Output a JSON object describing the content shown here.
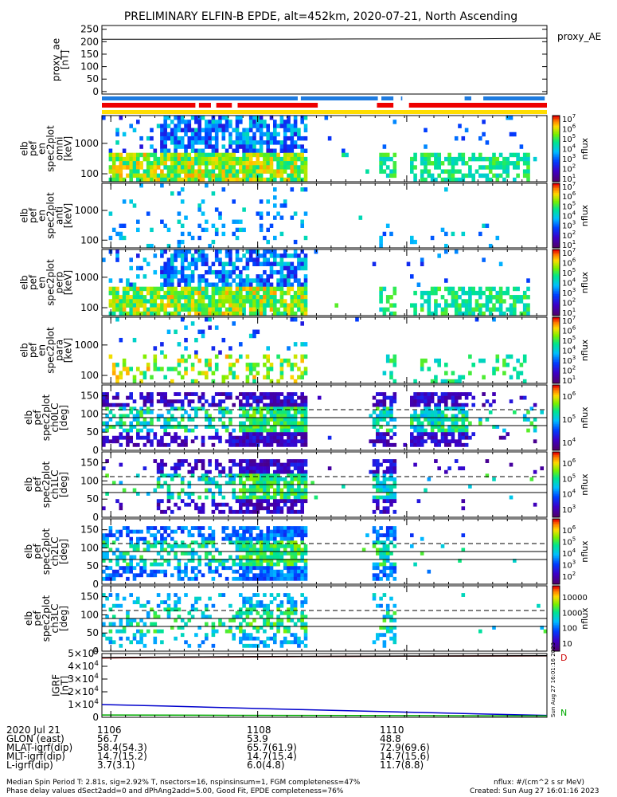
{
  "chart_data": {
    "type": "heatmap",
    "title": "PRELIMINARY ELFIN-B EPDE, alt=452km, 2020-07-21, North Ascending",
    "time_ticks": [
      "1106",
      "1108",
      "1110"
    ],
    "proxy_ae": {
      "ylabel": "proxy_ae\n[nT]",
      "legend": "proxy_AE",
      "yticks": [
        "250",
        "200",
        "150",
        "100",
        "50",
        "0"
      ],
      "ylim": [
        -10,
        265
      ],
      "values": [
        210,
        210,
        210,
        210,
        211,
        211,
        212,
        214
      ]
    },
    "spectra_panels": [
      {
        "ylabel": "elb\npef\nen\nspec2plot\nomni\n[keV]",
        "yticks": [
          "1000",
          "100"
        ],
        "colorbar_ticks": [
          "10^7",
          "10^6",
          "10^5",
          "10^4",
          "10^3",
          "10^2",
          "10^1"
        ],
        "colorbar_label": "nflux"
      },
      {
        "ylabel": "elb\npef\nen\nspec2plot\nanti\n[keV]",
        "yticks": [
          "1000",
          "100"
        ],
        "colorbar_ticks": [
          "10^7",
          "10^6",
          "10^5",
          "10^4",
          "10^3",
          "10^2",
          "10^1"
        ],
        "colorbar_label": "nflux"
      },
      {
        "ylabel": "elb\npef\nen\nspec2plot\nperp\n[keV]",
        "yticks": [
          "1000",
          "100"
        ],
        "colorbar_ticks": [
          "10^7",
          "10^6",
          "10^5",
          "10^4",
          "10^3",
          "10^2",
          "10^1"
        ],
        "colorbar_label": "nflux"
      },
      {
        "ylabel": "elb\npef\nen\nspec2plot\npara\n[keV]",
        "yticks": [
          "1000",
          "100"
        ],
        "colorbar_ticks": [
          "10^7",
          "10^6",
          "10^5",
          "10^4",
          "10^3",
          "10^2",
          "10^1"
        ],
        "colorbar_label": "nflux"
      }
    ],
    "pa_panels": [
      {
        "ylabel": "elb\npef\nspec2plot\nch0LC\n[deg]",
        "yticks": [
          "150",
          "100",
          "50",
          "0"
        ],
        "colorbar_ticks": [
          "10^6",
          "10^5",
          "10^4"
        ],
        "colorbar_label": "nflux"
      },
      {
        "ylabel": "elb\npef\nspec2plot\nch1LC\n[deg]",
        "yticks": [
          "150",
          "100",
          "50",
          "0"
        ],
        "colorbar_ticks": [
          "10^6",
          "10^5",
          "10^4",
          "10^3"
        ],
        "colorbar_label": "nflux"
      },
      {
        "ylabel": "elb\npef\nspec2plot\nch2LC\n[deg]",
        "yticks": [
          "150",
          "100",
          "50",
          "0"
        ],
        "colorbar_ticks": [
          "10^6",
          "10^5",
          "10^4",
          "10^3",
          "10^2"
        ],
        "colorbar_label": "nflux"
      },
      {
        "ylabel": "elb\npef\nspec2plot\nch3LC\n[deg]",
        "yticks": [
          "150",
          "100",
          "50",
          "0"
        ],
        "colorbar_ticks": [
          "10000",
          "1000",
          "100",
          "10"
        ],
        "colorbar_label": "nflux"
      }
    ],
    "igrf": {
      "ylabel": "IGRF\n[nT]",
      "yticks": [
        "5×10^4",
        "4×10^4",
        "3×10^4",
        "2×10^4",
        "1×10^4",
        "0"
      ],
      "ylim": [
        0,
        50000
      ],
      "series": [
        {
          "name": "D",
          "color": "#cc0000",
          "values": [
            46500,
            47000,
            47300,
            47600,
            47800,
            48000,
            48100,
            48200
          ]
        },
        {
          "name": "",
          "color": "#000000",
          "values": [
            46800,
            47200,
            47500,
            47700,
            47900,
            48050,
            48150,
            48250
          ]
        },
        {
          "name": "",
          "color": "#0000cc",
          "values": [
            10000,
            8800,
            7500,
            6200,
            5000,
            3800,
            2600,
            1500
          ]
        },
        {
          "name": "N",
          "color": "#00aa00",
          "values": [
            1800,
            1700,
            1600,
            1500,
            1400,
            1300,
            1200,
            1100
          ]
        }
      ],
      "side_text": "Sun Aug 27 16:01:16 2023"
    }
  },
  "footer": {
    "rows": [
      {
        "label": "2020 Jul 21",
        "v1": "1106",
        "v2": "1108",
        "v3": "1110"
      },
      {
        "label": "GLON (east)",
        "v1": "56.7",
        "v2": "53.9",
        "v3": "48.8"
      },
      {
        "label": "MLAT-igrf(dip)",
        "v1": "58.4(54.3)",
        "v2": "65.7(61.9)",
        "v3": "72.9(69.6)"
      },
      {
        "label": "MLT-igrf(dip)",
        "v1": "14.7(15.2)",
        "v2": "14.7(15.4)",
        "v3": "14.7(15.6)"
      },
      {
        "label": "L-igrf(dip)",
        "v1": "3.7(3.1)",
        "v2": "6.0(4.8)",
        "v3": "11.7(8.8)"
      }
    ],
    "note1": "Median Spin Period T: 2.81s, sig=2.92% T, nsectors=16, nspinsinsum=1, FGM completeness=47%",
    "note2": "Phase delay values dSect2add=0 and dPhAng2add=5.00, Good Fit, EPDE completeness=76%",
    "units": "nflux: #/(cm^2 s sr MeV)",
    "created": "Created: Sun Aug 27 16:01:16 2023"
  }
}
